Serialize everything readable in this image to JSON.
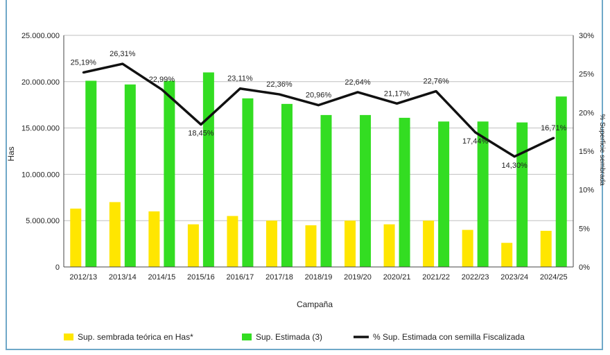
{
  "chart_data": {
    "type": "bar",
    "xlabel": "Campaña",
    "ylabel": "Has",
    "y2label": "% Superficie sembrada",
    "ylim": [
      0,
      25000000
    ],
    "y2lim": [
      0,
      30
    ],
    "yticks": [
      "0",
      "5.000.000",
      "10.000.000",
      "15.000.000",
      "20.000.000",
      "25.000.000"
    ],
    "y2ticks": [
      "0%",
      "5%",
      "10%",
      "15%",
      "20%",
      "25%",
      "30%"
    ],
    "categories": [
      "2012/13",
      "2013/14",
      "2014/15",
      "2015/16",
      "2016/17",
      "2017/18",
      "2018/19",
      "2019/20",
      "2020/21",
      "2021/22",
      "2022/23",
      "2023/24",
      "2024/25"
    ],
    "series": [
      {
        "name": "Sup. sembrada teórica en Has*",
        "type": "bar",
        "color": "#ffe600",
        "values": [
          6300000,
          7000000,
          6000000,
          4600000,
          5500000,
          5000000,
          4500000,
          5000000,
          4600000,
          5000000,
          4000000,
          2600000,
          3900000
        ]
      },
      {
        "name": "Sup. Estimada (3)",
        "type": "bar",
        "color": "#33dd22",
        "values": [
          20100000,
          19700000,
          20100000,
          21000000,
          18200000,
          17600000,
          16400000,
          16400000,
          16100000,
          15700000,
          15700000,
          15600000,
          18400000
        ]
      },
      {
        "name": "% Sup. Estimada con semilla Fiscalizada",
        "type": "line",
        "axis": "right",
        "color": "#111111",
        "values": [
          25.19,
          26.31,
          22.99,
          18.45,
          23.11,
          22.36,
          20.96,
          22.64,
          21.17,
          22.76,
          17.44,
          14.3,
          16.71
        ],
        "labels": [
          "25,19%",
          "26,31%",
          "22,99%",
          "18,45%",
          "23,11%",
          "22,36%",
          "20,96%",
          "22,64%",
          "21,17%",
          "22,76%",
          "17,44%",
          "14,30%",
          "16,71%"
        ]
      }
    ],
    "grid": true,
    "legend": "bottom"
  }
}
